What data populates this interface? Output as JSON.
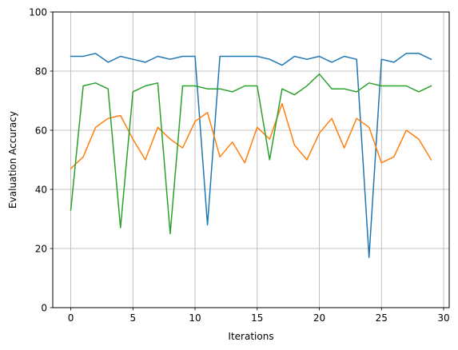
{
  "chart_data": {
    "type": "line",
    "title": "",
    "xlabel": "Iterations",
    "ylabel": "Evaluation Accuracy",
    "xlim": [
      -1.45,
      30.45
    ],
    "ylim": [
      0,
      100
    ],
    "xticks": [
      0,
      5,
      10,
      15,
      20,
      25,
      30
    ],
    "yticks": [
      0,
      20,
      40,
      60,
      80,
      100
    ],
    "grid": true,
    "legend": "none",
    "x": [
      0,
      1,
      2,
      3,
      4,
      5,
      6,
      7,
      8,
      9,
      10,
      11,
      12,
      13,
      14,
      15,
      16,
      17,
      18,
      19,
      20,
      21,
      22,
      23,
      24,
      25,
      26,
      27,
      28,
      29
    ],
    "series": [
      {
        "color": "#1f77b4",
        "values": [
          85,
          85,
          86,
          83,
          85,
          84,
          83,
          85,
          84,
          85,
          85,
          28,
          85,
          85,
          85,
          85,
          84,
          82,
          85,
          84,
          85,
          83,
          85,
          84,
          17,
          84,
          83,
          86,
          86,
          84
        ]
      },
      {
        "color": "#ff7f0e",
        "values": [
          47,
          51,
          61,
          64,
          65,
          57,
          50,
          61,
          57,
          54,
          63,
          66,
          51,
          56,
          49,
          61,
          57,
          69,
          55,
          50,
          59,
          64,
          54,
          64,
          61,
          49,
          51,
          60,
          57,
          50
        ]
      },
      {
        "color": "#2ca02c",
        "values": [
          33,
          75,
          76,
          74,
          27,
          73,
          75,
          76,
          25,
          75,
          75,
          74,
          74,
          73,
          75,
          75,
          50,
          74,
          72,
          75,
          79,
          74,
          74,
          73,
          76,
          75,
          75,
          75,
          73,
          75
        ]
      }
    ]
  }
}
